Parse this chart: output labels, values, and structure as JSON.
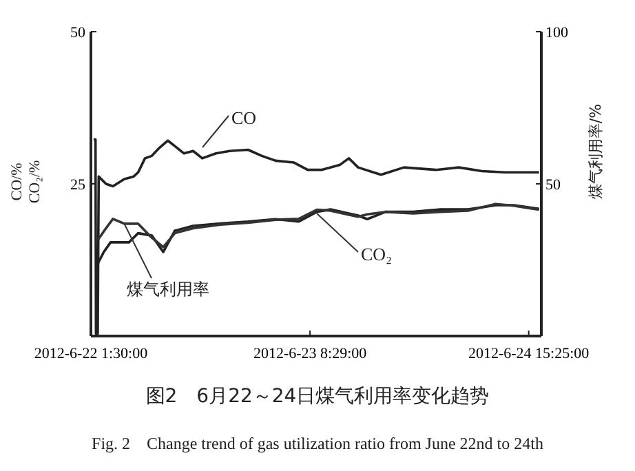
{
  "chart_data": {
    "type": "line",
    "title": "图2　6月22～24日煤气利用率变化趋势",
    "subtitle": "Fig. 2　Change trend of gas utilization ratio from June 22nd to 24th",
    "ylabel": "CO/%\nCO₂/%",
    "y2label": "煤气利用率/%",
    "xlim": [
      "2012-06-22T01:30",
      "2012-06-24T17:12"
    ],
    "xticks": [
      {
        "value": "2012-06-22T01:30",
        "label": "2012-6-22 1:30:00"
      },
      {
        "value": "2012-06-23T08:29",
        "label": "2012-6-23 8:29:00"
      },
      {
        "value": "2012-06-24T15:25",
        "label": "2012-6-24 15:25:00"
      }
    ],
    "ylim": [
      0,
      50
    ],
    "yticks": [
      25,
      50
    ],
    "y2lim": [
      0,
      100
    ],
    "y2ticks": [
      50,
      100
    ],
    "grid": false,
    "legend": false,
    "line_style": "solid",
    "series": [
      {
        "name": "CO",
        "color": "#222222",
        "x": [
          "2012-06-22T01:53",
          "2012-06-22T02:09",
          "2012-06-22T02:13",
          "2012-06-22T02:28",
          "2012-06-22T02:36",
          "2012-06-22T03:38",
          "2012-06-22T04:37",
          "2012-06-22T06:14",
          "2012-06-22T07:32",
          "2012-06-22T08:11",
          "2012-06-22T09:09",
          "2012-06-22T10:07",
          "2012-06-22T11:05",
          "2012-06-22T12:23",
          "2012-06-22T13:22",
          "2012-06-22T14:40",
          "2012-06-22T15:57",
          "2012-06-22T17:15",
          "2012-06-22T19:11",
          "2012-06-22T21:08",
          "2012-06-22T23:44",
          "2012-06-23T01:40",
          "2012-06-23T03:37",
          "2012-06-23T06:13",
          "2012-06-23T08:09",
          "2012-06-23T10:06",
          "2012-06-23T12:41",
          "2012-06-23T13:59",
          "2012-06-23T15:17",
          "2012-06-23T18:31",
          "2012-06-23T21:46",
          "2012-06-24T02:18",
          "2012-06-24T05:32",
          "2012-06-24T08:47",
          "2012-06-24T12:01",
          "2012-06-24T16:53"
        ],
        "values": [
          32.3,
          32.3,
          0.4,
          0.4,
          26.2,
          25.0,
          24.6,
          25.8,
          26.2,
          26.9,
          29.2,
          29.6,
          30.8,
          32.1,
          31.2,
          30.0,
          30.4,
          29.2,
          30.0,
          30.4,
          30.6,
          29.6,
          28.8,
          28.5,
          27.3,
          27.3,
          28.1,
          29.2,
          27.7,
          26.5,
          27.7,
          27.3,
          27.7,
          27.1,
          26.9,
          26.9
        ]
      },
      {
        "name": "CO₂",
        "color": "#222222",
        "x": [
          "2012-06-22T02:28",
          "2012-06-22T03:19",
          "2012-06-22T04:17",
          "2012-06-22T06:53",
          "2012-06-22T08:11",
          "2012-06-22T10:07",
          "2012-06-22T11:44",
          "2012-06-22T13:22",
          "2012-06-22T15:57",
          "2012-06-22T19:50",
          "2012-06-22T23:44",
          "2012-06-23T03:37",
          "2012-06-23T06:52",
          "2012-06-23T09:27",
          "2012-06-23T11:23",
          "2012-06-23T15:17",
          "2012-06-23T16:35",
          "2012-06-23T19:10",
          "2012-06-23T23:04",
          "2012-06-24T02:57",
          "2012-06-24T06:50",
          "2012-06-24T10:44",
          "2012-06-24T13:19",
          "2012-06-24T16:53"
        ],
        "values": [
          11.9,
          13.8,
          15.4,
          15.4,
          16.9,
          16.5,
          13.8,
          17.3,
          18.1,
          18.5,
          18.8,
          19.2,
          18.8,
          20.4,
          20.8,
          19.8,
          19.2,
          20.4,
          20.4,
          20.8,
          20.8,
          21.5,
          21.5,
          20.9
        ]
      },
      {
        "name": "煤气利用率",
        "color": "#333333",
        "axis": "y2",
        "x": [
          "2012-06-22T02:28",
          "2012-06-22T03:38",
          "2012-06-22T04:37",
          "2012-06-22T06:14",
          "2012-06-22T08:11",
          "2012-06-22T10:07",
          "2012-06-22T11:44",
          "2012-06-22T13:22",
          "2012-06-22T15:57",
          "2012-06-22T19:50",
          "2012-06-22T23:44",
          "2012-06-23T03:37",
          "2012-06-23T06:52",
          "2012-06-23T09:27",
          "2012-06-23T11:23",
          "2012-06-23T15:17",
          "2012-06-23T16:35",
          "2012-06-23T19:10",
          "2012-06-23T23:04",
          "2012-06-24T02:57",
          "2012-06-24T06:50",
          "2012-06-24T10:44",
          "2012-06-24T13:19",
          "2012-06-24T16:53"
        ],
        "values": [
          31.5,
          35.4,
          38.5,
          36.9,
          36.9,
          32.3,
          29.2,
          33.8,
          35.4,
          36.6,
          37.2,
          38.2,
          38.5,
          41.5,
          41.2,
          39.2,
          40.0,
          40.8,
          40.3,
          40.8,
          41.2,
          43.4,
          42.8,
          41.5
        ]
      }
    ]
  }
}
